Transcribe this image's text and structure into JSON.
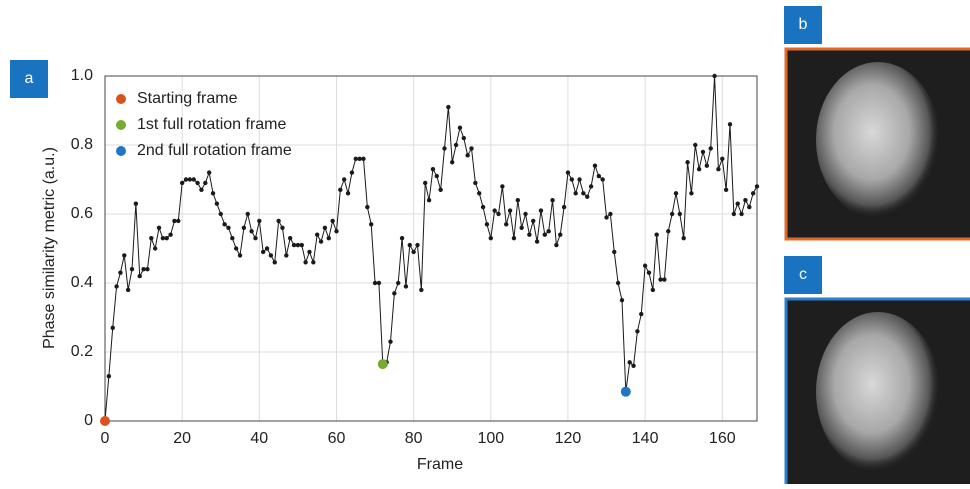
{
  "chart_data": {
    "type": "line",
    "x_label": "Frame",
    "y_label": "Phase similarity metric (a.u.)",
    "panel_labels": [
      "a",
      "b",
      "c"
    ],
    "xlim": [
      0,
      169
    ],
    "ylim": [
      0,
      1
    ],
    "xticks": [
      0,
      20,
      40,
      60,
      80,
      100,
      120,
      140,
      160
    ],
    "yticks": [
      0,
      0.2,
      0.4,
      0.6,
      0.8,
      {
        "value": 1,
        "label": "1.0"
      }
    ],
    "grid": true,
    "color": "#1a1a1a",
    "x": [
      0,
      1,
      2,
      3,
      4,
      5,
      6,
      7,
      8,
      9,
      10,
      11,
      12,
      13,
      14,
      15,
      16,
      17,
      18,
      19,
      20,
      21,
      22,
      23,
      24,
      25,
      26,
      27,
      28,
      29,
      30,
      31,
      32,
      33,
      34,
      35,
      36,
      37,
      38,
      39,
      40,
      41,
      42,
      43,
      44,
      45,
      46,
      47,
      48,
      49,
      50,
      51,
      52,
      53,
      54,
      55,
      56,
      57,
      58,
      59,
      60,
      61,
      62,
      63,
      64,
      65,
      66,
      67,
      68,
      69,
      70,
      71,
      72,
      73,
      74,
      75,
      76,
      77,
      78,
      79,
      80,
      81,
      82,
      83,
      84,
      85,
      86,
      87,
      88,
      89,
      90,
      91,
      92,
      93,
      94,
      95,
      96,
      97,
      98,
      99,
      100,
      101,
      102,
      103,
      104,
      105,
      106,
      107,
      108,
      109,
      110,
      111,
      112,
      113,
      114,
      115,
      116,
      117,
      118,
      119,
      120,
      121,
      122,
      123,
      124,
      125,
      126,
      127,
      128,
      129,
      130,
      131,
      132,
      133,
      134,
      135,
      136,
      137,
      138,
      139,
      140,
      141,
      142,
      143,
      144,
      145,
      146,
      147,
      148,
      149,
      150,
      151,
      152,
      153,
      154,
      155,
      156,
      157,
      158,
      159,
      160,
      161,
      162,
      163,
      164,
      165,
      166,
      167,
      168,
      169
    ],
    "values": [
      0,
      0.13,
      0.27,
      0.39,
      0.43,
      0.48,
      0.38,
      0.44,
      0.63,
      0.42,
      0.44,
      0.44,
      0.53,
      0.5,
      0.56,
      0.53,
      0.53,
      0.54,
      0.58,
      0.58,
      0.69,
      0.7,
      0.7,
      0.7,
      0.69,
      0.67,
      0.69,
      0.72,
      0.66,
      0.63,
      0.6,
      0.57,
      0.56,
      0.53,
      0.5,
      0.48,
      0.56,
      0.6,
      0.55,
      0.53,
      0.58,
      0.49,
      0.5,
      0.48,
      0.46,
      0.58,
      0.56,
      0.48,
      0.53,
      0.51,
      0.51,
      0.51,
      0.46,
      0.49,
      0.46,
      0.54,
      0.52,
      0.56,
      0.53,
      0.58,
      0.55,
      0.67,
      0.7,
      0.66,
      0.72,
      0.76,
      0.76,
      0.76,
      0.62,
      0.57,
      0.4,
      0.4,
      0.165,
      0.17,
      0.23,
      0.37,
      0.4,
      0.53,
      0.39,
      0.51,
      0.49,
      0.51,
      0.38,
      0.69,
      0.64,
      0.73,
      0.71,
      0.67,
      0.79,
      0.91,
      0.75,
      0.8,
      0.85,
      0.82,
      0.77,
      0.79,
      0.69,
      0.66,
      0.62,
      0.57,
      0.53,
      0.61,
      0.6,
      0.68,
      0.57,
      0.61,
      0.53,
      0.64,
      0.56,
      0.6,
      0.54,
      0.58,
      0.52,
      0.61,
      0.54,
      0.55,
      0.64,
      0.51,
      0.54,
      0.62,
      0.72,
      0.7,
      0.66,
      0.7,
      0.66,
      0.65,
      0.68,
      0.74,
      0.71,
      0.7,
      0.59,
      0.6,
      0.49,
      0.4,
      0.35,
      0.085,
      0.17,
      0.16,
      0.26,
      0.31,
      0.45,
      0.43,
      0.38,
      0.54,
      0.41,
      0.41,
      0.55,
      0.6,
      0.66,
      0.6,
      0.53,
      0.75,
      0.66,
      0.8,
      0.73,
      0.78,
      0.74,
      0.79,
      1,
      0.73,
      0.76,
      0.67,
      0.86,
      0.6,
      0.63,
      0.6,
      0.64,
      0.62,
      0.66,
      0.68
    ],
    "highlights": [
      {
        "name": "Starting frame",
        "color": "#d9531e",
        "x": 0,
        "value": 0
      },
      {
        "name": "1st full rotation frame",
        "color": "#77ac30",
        "x": 72,
        "value": 0.165
      },
      {
        "name": "2nd full rotation frame",
        "color": "#1f77c4",
        "x": 135,
        "value": 0.085
      }
    ]
  }
}
